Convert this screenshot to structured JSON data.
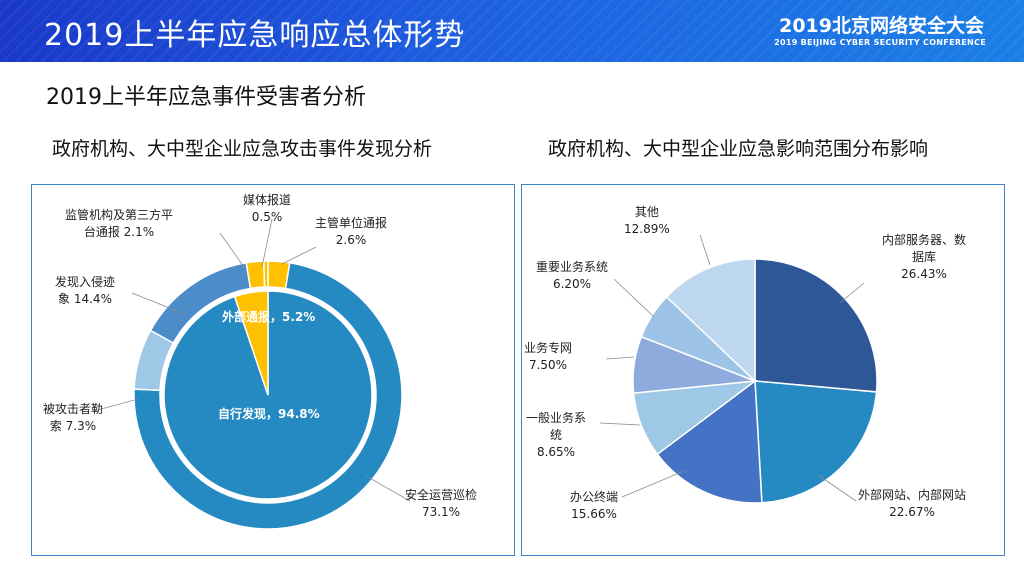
{
  "header": {
    "title": "2019上半年应急响应总体形势",
    "conference_name": "2019北京网络安全大会",
    "conference_sub": "2019 BEIJING CYBER SECURITY CONFERENCE"
  },
  "subtitle": "2019上半年应急事件受害者分析",
  "chart_data": [
    {
      "type": "pie",
      "title": "政府机构、大中型企业应急攻击事件发现分析",
      "inner": [
        {
          "name": "自行发现",
          "label": "自行发现，94.8%",
          "value": 94.8,
          "color": "#2589c2"
        },
        {
          "name": "外部通报",
          "label": "外部通报，5.2%",
          "value": 5.2,
          "color": "#ffc000"
        }
      ],
      "outer": [
        {
          "name": "主管单位通报",
          "value_label": "2.6%",
          "value": 2.6,
          "color": "#ffc000"
        },
        {
          "name": "安全运营巡检",
          "value_label": "73.1%",
          "value": 73.1,
          "color": "#2589c2"
        },
        {
          "name": "被攻击者勒索",
          "lines": [
            "被攻击者勒",
            "索 7.3%"
          ],
          "value": 7.3,
          "color": "#9fc8e7"
        },
        {
          "name": "发现入侵迹象",
          "lines": [
            "发现入侵迹",
            "象 14.4%"
          ],
          "value": 14.4,
          "color": "#4b8cc9"
        },
        {
          "name": "监管机构及第三方平台通报",
          "lines": [
            "监管机构及第三方平",
            "台通报 2.1%"
          ],
          "value": 2.1,
          "color": "#ffc000"
        },
        {
          "name": "媒体报道",
          "value_label": "0.5%",
          "value": 0.5,
          "color": "#ffc000"
        }
      ]
    },
    {
      "type": "pie",
      "title": "政府机构、大中型企业应急影响范围分布影响",
      "slices": [
        {
          "name": "内部服务器、数据库",
          "lines": [
            "内部服务器、数",
            "据库",
            "26.43%"
          ],
          "value": 26.43,
          "color": "#2e5797"
        },
        {
          "name": "外部网站、内部网站",
          "lines": [
            "外部网站、内部网站",
            "22.67%"
          ],
          "value": 22.67,
          "color": "#2589c2"
        },
        {
          "name": "办公终端",
          "lines": [
            "办公终端",
            "15.66%"
          ],
          "value": 15.66,
          "color": "#4472c4"
        },
        {
          "name": "一般业务系统",
          "lines": [
            "一般业务系",
            "统",
            "8.65%"
          ],
          "value": 8.65,
          "color": "#9fc8e7"
        },
        {
          "name": "业务专网",
          "lines": [
            "业务专网",
            "7.50%"
          ],
          "value": 7.5,
          "color": "#8faadc"
        },
        {
          "name": "重要业务系统",
          "lines": [
            "重要业务系统",
            "6.20%"
          ],
          "value": 6.2,
          "color": "#9dc3e6"
        },
        {
          "name": "其他",
          "lines": [
            "其他",
            "12.89%"
          ],
          "value": 12.89,
          "color": "#bdd7ee"
        }
      ]
    }
  ]
}
